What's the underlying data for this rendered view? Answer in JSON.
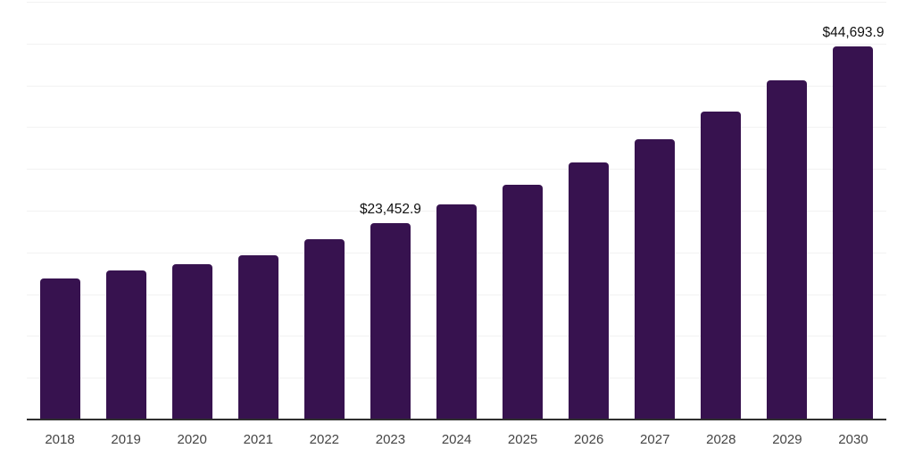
{
  "chart_data": {
    "type": "bar",
    "title": "",
    "xlabel": "",
    "ylabel": "",
    "categories": [
      "2018",
      "2019",
      "2020",
      "2021",
      "2022",
      "2023",
      "2024",
      "2025",
      "2026",
      "2027",
      "2028",
      "2029",
      "2030"
    ],
    "values": [
      16900,
      17850,
      18600,
      19700,
      21550,
      23452.9,
      25700,
      28100,
      30750,
      33550,
      36900,
      40550,
      44693.9
    ],
    "value_labels": [
      "",
      "",
      "",
      "",
      "",
      "$23,452.9",
      "",
      "",
      "",
      "",
      "",
      "",
      "$44,693.9"
    ],
    "ylim": [
      0,
      50000
    ],
    "gridline_step": 5000,
    "grid": true,
    "y_tick_labels_visible": false,
    "legend_position": "none",
    "styles": {
      "bar_color": "#37124F",
      "gridline_color": "#F2F2F2",
      "axis_line_color": "#2F2F2F",
      "tick_label_color": "#454545",
      "value_label_color": "#111111",
      "background_color": "#FFFFFF"
    }
  }
}
